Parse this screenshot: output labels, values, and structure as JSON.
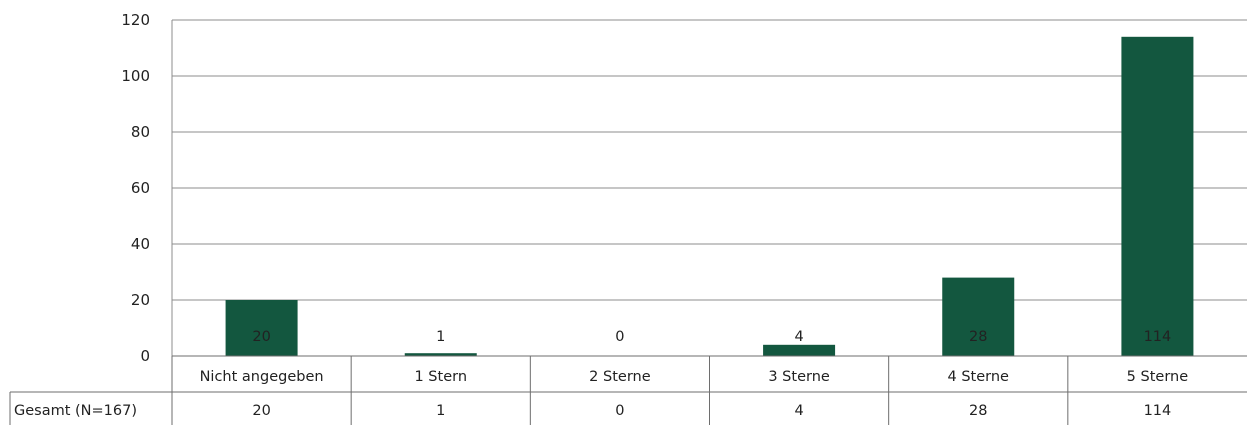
{
  "chart_data": {
    "type": "bar",
    "categories": [
      "Nicht angegeben",
      "1 Stern",
      "2 Sterne",
      "3 Sterne",
      "4 Sterne",
      "5 Sterne"
    ],
    "series": [
      {
        "name": "Gesamt (N=167)",
        "values": [
          20,
          1,
          0,
          4,
          28,
          114
        ],
        "color": "#13573f"
      }
    ],
    "ylim": [
      0,
      120
    ],
    "yticks": [
      0,
      20,
      40,
      60,
      80,
      100,
      120
    ],
    "grid": true,
    "data_labels": true,
    "data_table": true
  }
}
